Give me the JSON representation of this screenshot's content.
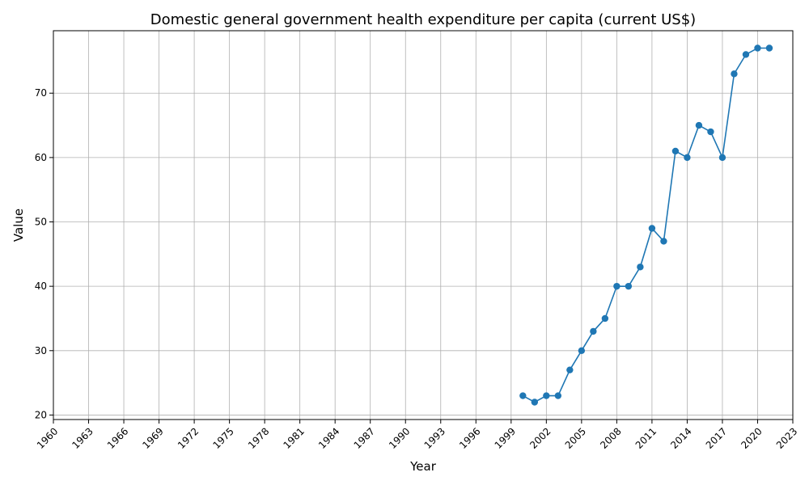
{
  "chart_data": {
    "type": "line",
    "title": "Domestic general government health expenditure per capita (current US$)",
    "xlabel": "Year",
    "ylabel": "Value",
    "xlim": [
      1960,
      2023
    ],
    "ylim": [
      19.3,
      79.7
    ],
    "xticks": [
      1960,
      1963,
      1966,
      1969,
      1972,
      1975,
      1978,
      1981,
      1984,
      1987,
      1990,
      1993,
      1996,
      1999,
      2002,
      2005,
      2008,
      2011,
      2014,
      2017,
      2020,
      2023
    ],
    "yticks": [
      20,
      30,
      40,
      50,
      60,
      70
    ],
    "grid": true,
    "colors": {
      "series": "#1f77b4"
    },
    "series": [
      {
        "x": [
          2000,
          2001,
          2002,
          2003,
          2004,
          2005,
          2006,
          2007,
          2008,
          2009,
          2010,
          2011,
          2012,
          2013,
          2014,
          2015,
          2016,
          2017,
          2018,
          2019,
          2020,
          2021
        ],
        "values": [
          23,
          22,
          23,
          23,
          27,
          30,
          33,
          35,
          40,
          40,
          43,
          49,
          47,
          61,
          60,
          65,
          64,
          60,
          73,
          76,
          77,
          77
        ]
      }
    ]
  }
}
